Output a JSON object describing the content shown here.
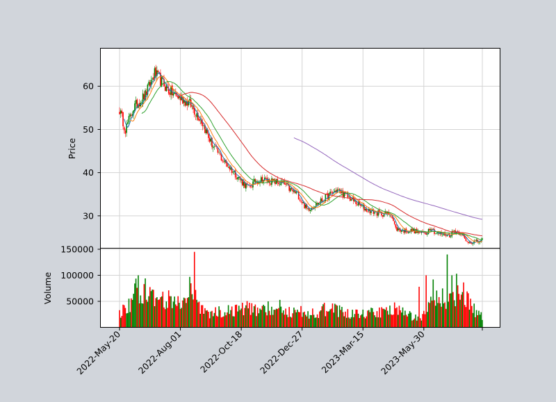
{
  "chart_data": {
    "type": "candlestick",
    "x_tick_labels": [
      "2022-May-20",
      "2022-Aug-01",
      "2022-Oct-18",
      "2022-Dec-27",
      "2023-Mar-15",
      "2023-May-30"
    ],
    "price_panel": {
      "ylabel": "Price",
      "ylim": [
        22.5,
        68.8
      ],
      "yticks": [
        30,
        40,
        50,
        60
      ],
      "grid": true,
      "close_keypoints": [
        [
          0,
          54.5
        ],
        [
          5,
          50
        ],
        [
          12,
          55
        ],
        [
          22,
          58
        ],
        [
          30,
          63
        ],
        [
          36,
          61
        ],
        [
          42,
          59
        ],
        [
          50,
          57.5
        ],
        [
          60,
          56
        ],
        [
          70,
          52
        ],
        [
          78,
          47
        ],
        [
          88,
          43
        ],
        [
          98,
          40
        ],
        [
          106,
          37.5
        ],
        [
          110,
          36.5
        ],
        [
          116,
          38
        ],
        [
          122,
          38.5
        ],
        [
          130,
          38
        ],
        [
          140,
          37.5
        ],
        [
          146,
          36
        ],
        [
          152,
          35
        ],
        [
          160,
          31.5
        ],
        [
          170,
          33
        ],
        [
          180,
          35
        ],
        [
          186,
          36
        ],
        [
          192,
          35
        ],
        [
          202,
          33
        ],
        [
          210,
          31.5
        ],
        [
          222,
          30.5
        ],
        [
          232,
          30.5
        ],
        [
          236,
          27
        ],
        [
          244,
          26.5
        ],
        [
          252,
          26.5
        ],
        [
          258,
          26
        ],
        [
          262,
          26
        ],
        [
          266,
          27.5
        ],
        [
          270,
          26
        ],
        [
          282,
          25.5
        ],
        [
          286,
          26.5
        ],
        [
          292,
          26
        ],
        [
          296,
          24
        ],
        [
          306,
          24
        ],
        [
          310,
          24.3
        ]
      ],
      "moving_averages": [
        {
          "color": "#1f77b4",
          "window": 5,
          "lw": 1.0
        },
        {
          "color": "#ff7f0e",
          "window": 10,
          "lw": 1.0
        },
        {
          "color": "#2ca02c",
          "window": 20,
          "lw": 1.0
        },
        {
          "color": "#d62728",
          "window": 50,
          "lw": 1.0
        },
        {
          "color": "#9467bd",
          "window": 150,
          "lw": 1.0
        }
      ]
    },
    "volume_panel": {
      "ylabel": "Volume",
      "ylim": [
        0,
        152000
      ],
      "yticks": [
        50000,
        100000,
        150000
      ],
      "ytick_labels": [
        "50000",
        "100000",
        "150000"
      ],
      "grid": true,
      "volume_keypoints": [
        [
          0,
          28000
        ],
        [
          8,
          40000
        ],
        [
          14,
          72000
        ],
        [
          20,
          55000
        ],
        [
          24,
          78000
        ],
        [
          30,
          62000
        ],
        [
          36,
          58000
        ],
        [
          42,
          52000
        ],
        [
          50,
          48000
        ],
        [
          56,
          42000
        ],
        [
          62,
          70000
        ],
        [
          66,
          48000
        ],
        [
          72,
          30000
        ],
        [
          80,
          28000
        ],
        [
          88,
          32000
        ],
        [
          96,
          34000
        ],
        [
          104,
          36000
        ],
        [
          112,
          38000
        ],
        [
          120,
          34000
        ],
        [
          128,
          36000
        ],
        [
          136,
          40000
        ],
        [
          144,
          30000
        ],
        [
          152,
          32000
        ],
        [
          160,
          26000
        ],
        [
          170,
          30000
        ],
        [
          178,
          36000
        ],
        [
          186,
          32000
        ],
        [
          194,
          28000
        ],
        [
          200,
          26000
        ],
        [
          210,
          28000
        ],
        [
          220,
          30000
        ],
        [
          230,
          28000
        ],
        [
          236,
          42000
        ],
        [
          242,
          30000
        ],
        [
          250,
          20000
        ],
        [
          256,
          18000
        ],
        [
          262,
          28000
        ],
        [
          268,
          60000
        ],
        [
          276,
          55000
        ],
        [
          284,
          60000
        ],
        [
          290,
          75000
        ],
        [
          296,
          55000
        ],
        [
          302,
          35000
        ],
        [
          306,
          30000
        ],
        [
          310,
          20000
        ]
      ],
      "volume_peaks": [
        [
          16,
          100000
        ],
        [
          22,
          94000
        ],
        [
          60,
          97000
        ],
        [
          64,
          145000
        ],
        [
          256,
          78000
        ],
        [
          262,
          100000
        ],
        [
          268,
          92000
        ],
        [
          280,
          140000
        ],
        [
          284,
          100000
        ],
        [
          288,
          103000
        ]
      ]
    },
    "up_color": "#008000",
    "down_color": "#ff0000"
  }
}
